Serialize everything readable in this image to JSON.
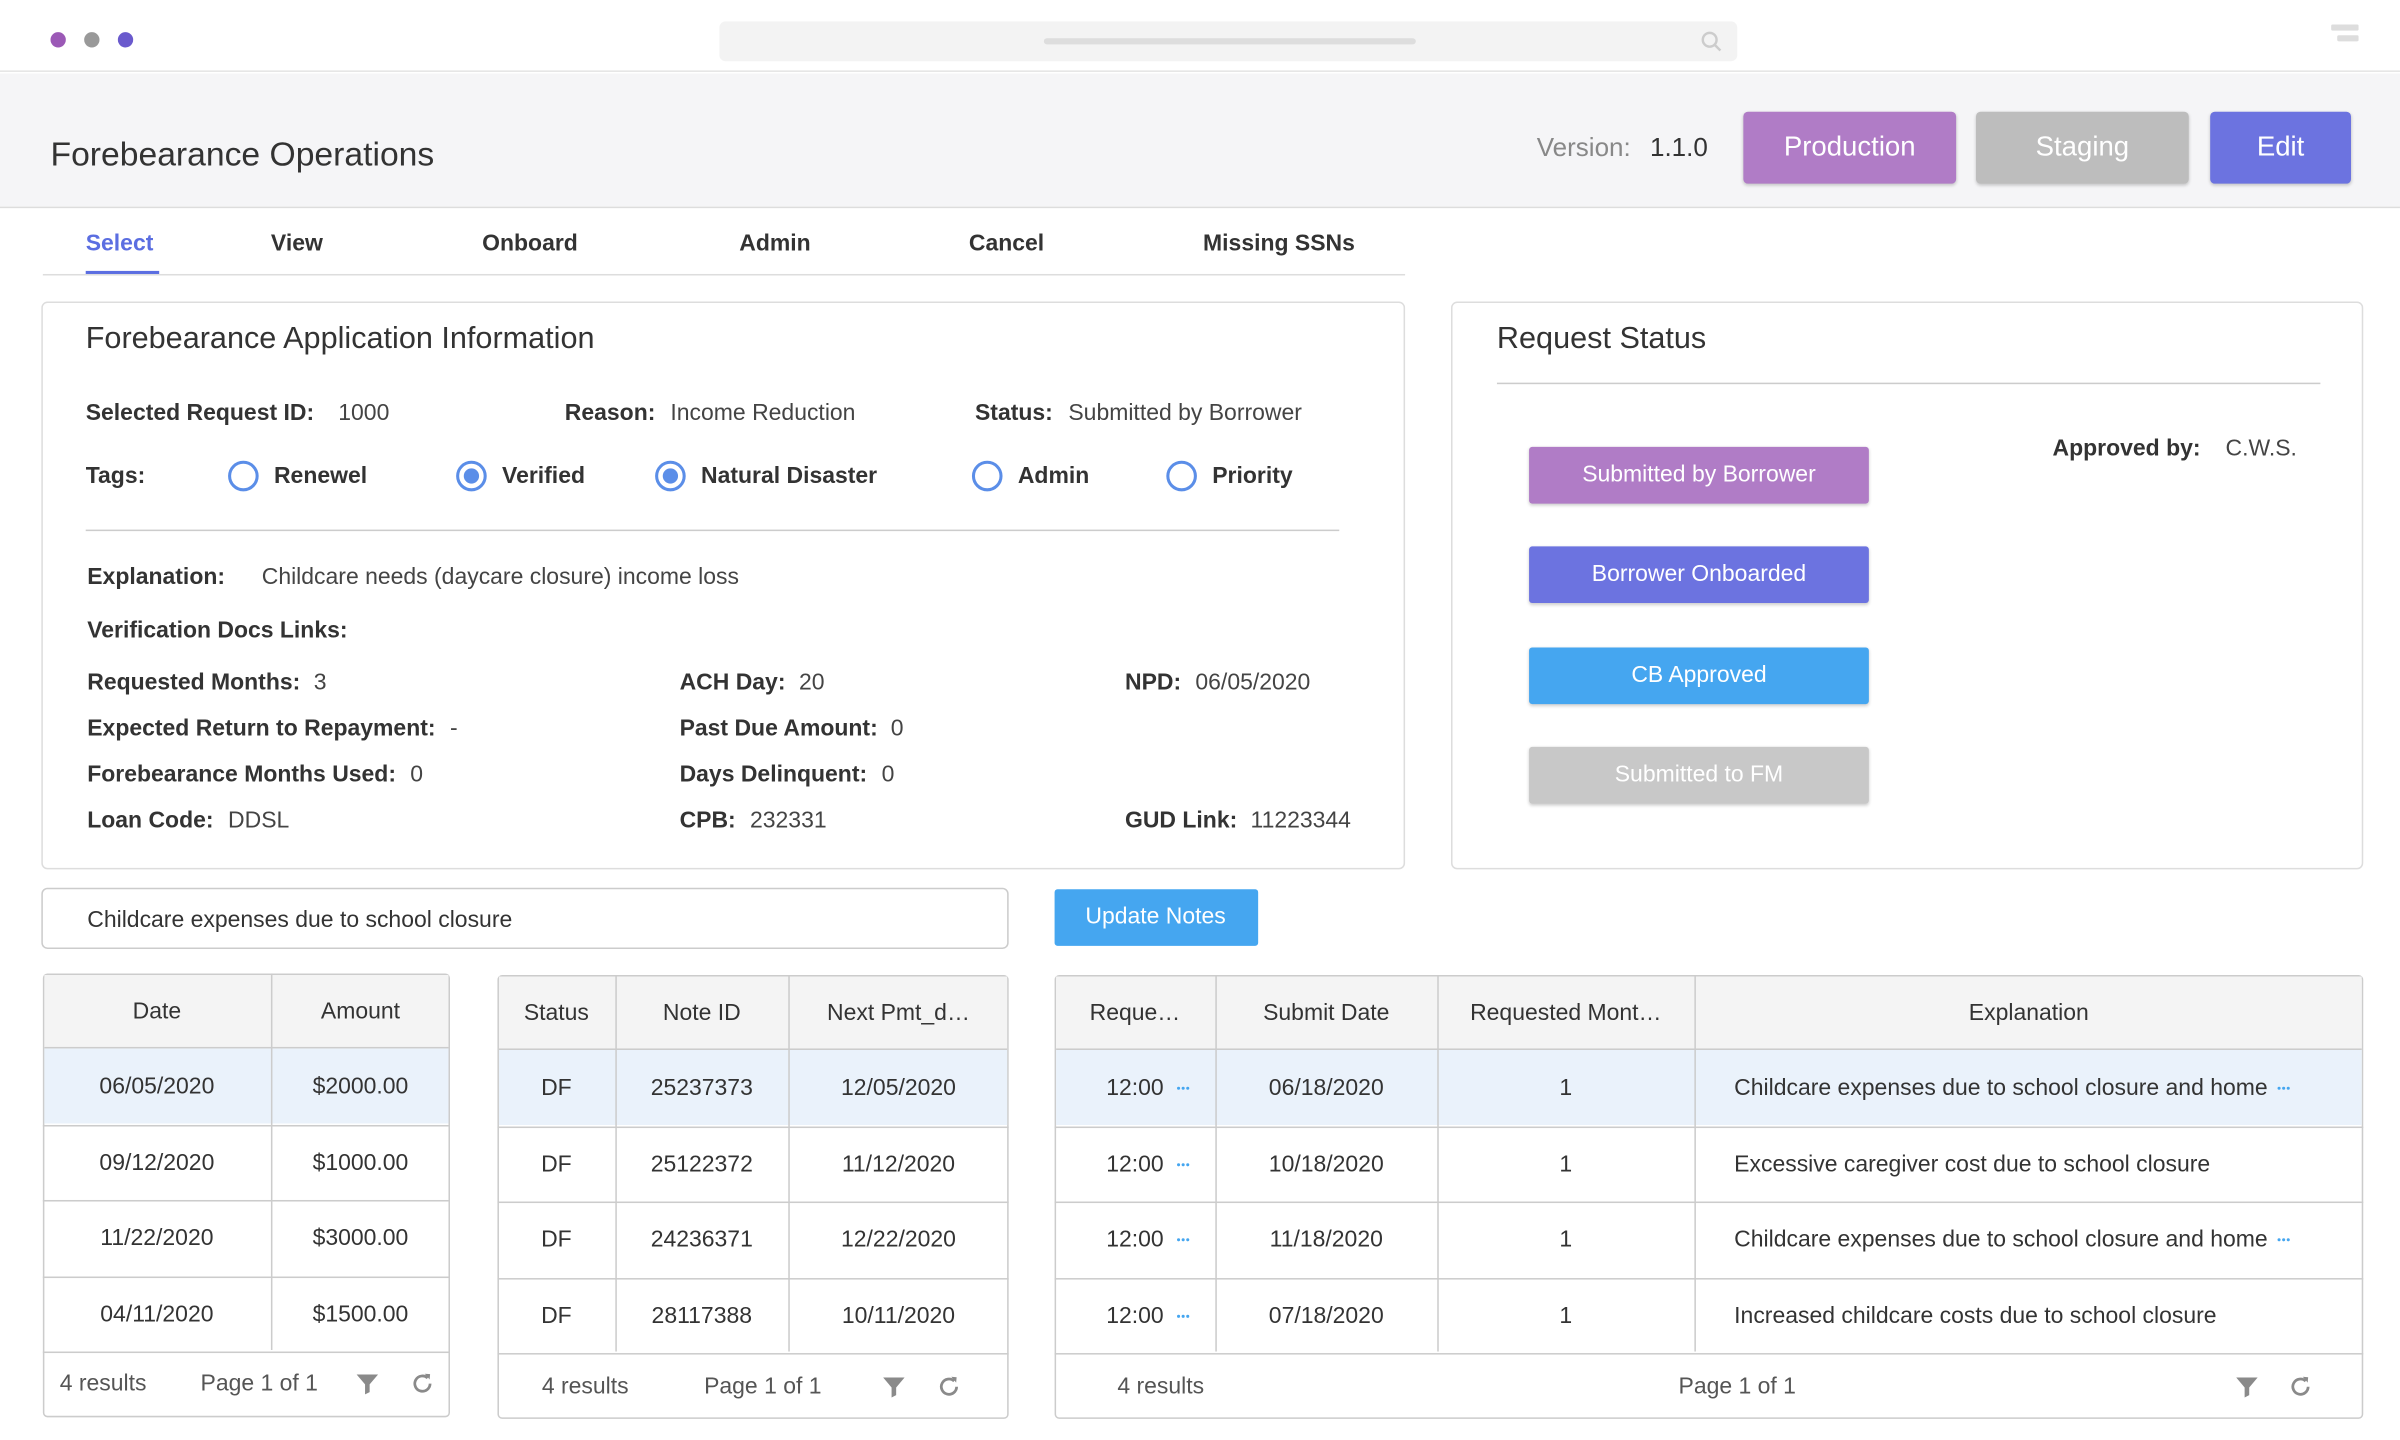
{
  "header": {
    "title": "Forebearance Operations",
    "version_label": "Version:",
    "version": "1.1.0",
    "buttons": [
      "Production",
      "Staging",
      "Edit"
    ]
  },
  "tabs": [
    "Select",
    "View",
    "Onboard",
    "Admin",
    "Cancel",
    "Missing SSNs"
  ],
  "application": {
    "title": "Forebearance Application Information",
    "summary": [
      {
        "label": "Selected Request ID:",
        "value": "1000"
      },
      {
        "label": "Reason:",
        "value": "Income Reduction"
      },
      {
        "label": "Status:",
        "value": "Submitted by Borrower"
      }
    ],
    "tags_label": "Tags:",
    "tags": [
      {
        "label": "Renewel",
        "checked": false
      },
      {
        "label": "Verified",
        "checked": true
      },
      {
        "label": "Natural Disaster",
        "checked": true
      },
      {
        "label": "Admin",
        "checked": false
      },
      {
        "label": "Priority",
        "checked": false
      }
    ],
    "explanation_label": "Explanation:",
    "explanation": "Childcare needs (daycare closure) income loss",
    "docs_label": "Verification Docs Links:",
    "details": [
      {
        "label": "Requested Months:",
        "value": "3"
      },
      {
        "label": "Expected Return to Repayment:",
        "value": "-"
      },
      {
        "label": "Forebearance Months Used:",
        "value": "0"
      },
      {
        "label": "Loan Code:",
        "value": "DDSL"
      },
      {
        "label": "ACH Day:",
        "value": "20"
      },
      {
        "label": "Past Due Amount:",
        "value": "0"
      },
      {
        "label": "Days Delinquent:",
        "value": "0"
      },
      {
        "label": "CPB:",
        "value": "232331"
      },
      {
        "label": "NPD:",
        "value": "06/05/2020"
      },
      {
        "label": "GUD Link:",
        "value": "11223344"
      }
    ]
  },
  "request_status": {
    "title": "Request Status",
    "steps": [
      {
        "label": "Submitted by Borrower",
        "color": "#b07cc6"
      },
      {
        "label": "Borrower Onboarded",
        "color": "#6c73e0"
      },
      {
        "label": "CB Approved",
        "color": "#45a6f0"
      },
      {
        "label": "Submitted to FM",
        "color": "#c8c8c8"
      }
    ],
    "approved_label": "Approved by:",
    "approved_by": "C.W.S."
  },
  "notes": {
    "text": "Childcare expenses due to school closure",
    "button": "Update Notes"
  },
  "tables": [
    {
      "columns": [
        "Date",
        "Amount"
      ],
      "rows": [
        [
          "06/05/2020",
          "$2000.00"
        ],
        [
          "09/12/2020",
          "$1000.00"
        ],
        [
          "11/22/2020",
          "$3000.00"
        ],
        [
          "04/11/2020",
          "$1500.00"
        ]
      ],
      "results": "4 results",
      "page": "Page 1 of 1"
    },
    {
      "columns": [
        "Status",
        "Note ID",
        "Next Pmt_d…"
      ],
      "rows": [
        [
          "DF",
          "25237373",
          "12/05/2020"
        ],
        [
          "DF",
          "25122372",
          "11/12/2020"
        ],
        [
          "DF",
          "24236371",
          "12/22/2020"
        ],
        [
          "DF",
          "28117388",
          "10/11/2020"
        ]
      ],
      "results": "4 results",
      "page": "Page 1 of 1"
    },
    {
      "columns": [
        "Reque…",
        "Submit Date",
        "Requested Mont…",
        "Explanation"
      ],
      "rows": [
        [
          "12:00",
          "06/18/2020",
          "1",
          "Childcare expenses due to school closure and home"
        ],
        [
          "12:00",
          "10/18/2020",
          "1",
          "Excessive caregiver cost due to school closure"
        ],
        [
          "12:00",
          "11/18/2020",
          "1",
          "Childcare expenses due to school closure and home"
        ],
        [
          "12:00",
          "07/18/2020",
          "1",
          "Increased childcare costs due to school closure"
        ]
      ],
      "results": "4 results",
      "page": "Page 1 of 1"
    }
  ]
}
